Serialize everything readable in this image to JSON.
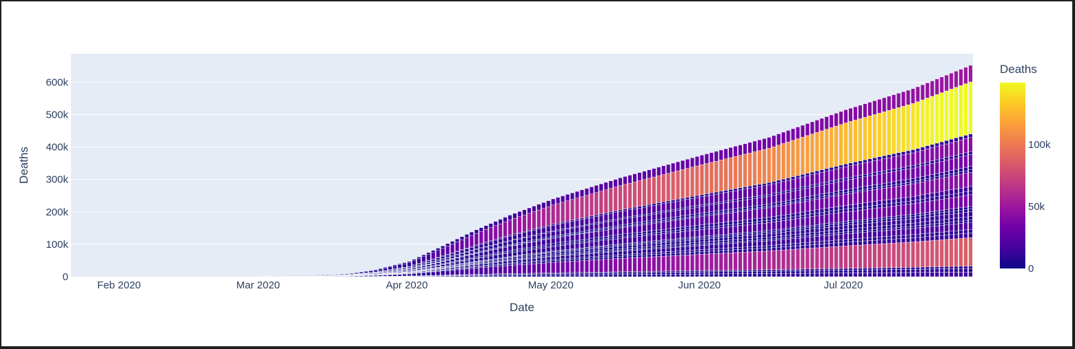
{
  "chart_data": {
    "type": "bar",
    "barmode": "stack",
    "xlabel": "Date",
    "ylabel": "Deaths",
    "x_range": [
      "2020-01-22",
      "2020-07-27"
    ],
    "ylim": [
      0,
      688000
    ],
    "x_ticks": [
      {
        "date": "2020-02-01",
        "label": "Feb 2020"
      },
      {
        "date": "2020-03-01",
        "label": "Mar 2020"
      },
      {
        "date": "2020-04-01",
        "label": "Apr 2020"
      },
      {
        "date": "2020-05-01",
        "label": "May 2020"
      },
      {
        "date": "2020-06-01",
        "label": "Jun 2020"
      },
      {
        "date": "2020-07-01",
        "label": "Jul 2020"
      }
    ],
    "y_ticks": [
      {
        "value": 0,
        "label": "0"
      },
      {
        "value": 100000,
        "label": "100k"
      },
      {
        "value": 200000,
        "label": "200k"
      },
      {
        "value": 300000,
        "label": "300k"
      },
      {
        "value": 400000,
        "label": "400k"
      },
      {
        "value": 500000,
        "label": "500k"
      },
      {
        "value": 600000,
        "label": "600k"
      }
    ],
    "grid": true,
    "total_deaths_samples": [
      {
        "date": "2020-03-01",
        "value": 3000
      },
      {
        "date": "2020-03-15",
        "value": 6000
      },
      {
        "date": "2020-03-20",
        "value": 11000
      },
      {
        "date": "2020-03-25",
        "value": 22000
      },
      {
        "date": "2020-04-01",
        "value": 47000
      },
      {
        "date": "2020-04-08",
        "value": 95000
      },
      {
        "date": "2020-04-15",
        "value": 145000
      },
      {
        "date": "2020-04-22",
        "value": 190000
      },
      {
        "date": "2020-05-01",
        "value": 240000
      },
      {
        "date": "2020-05-15",
        "value": 305000
      },
      {
        "date": "2020-06-01",
        "value": 375000
      },
      {
        "date": "2020-06-15",
        "value": 430000
      },
      {
        "date": "2020-07-01",
        "value": 515000
      },
      {
        "date": "2020-07-15",
        "value": 580000
      },
      {
        "date": "2020-07-27",
        "value": 652000
      }
    ],
    "color_encoding": {
      "title": "Deaths",
      "range": [
        0,
        150000
      ],
      "colorscale": [
        "#0d0887",
        "#46039f",
        "#7201a8",
        "#9c179e",
        "#bd3786",
        "#d8576b",
        "#ed7953",
        "#fb9f3a",
        "#fdca26",
        "#f0f921"
      ],
      "ticks": [
        {
          "value": 0,
          "label": "0"
        },
        {
          "value": 50000,
          "label": "50k"
        },
        {
          "value": 100000,
          "label": "100k"
        }
      ]
    }
  }
}
